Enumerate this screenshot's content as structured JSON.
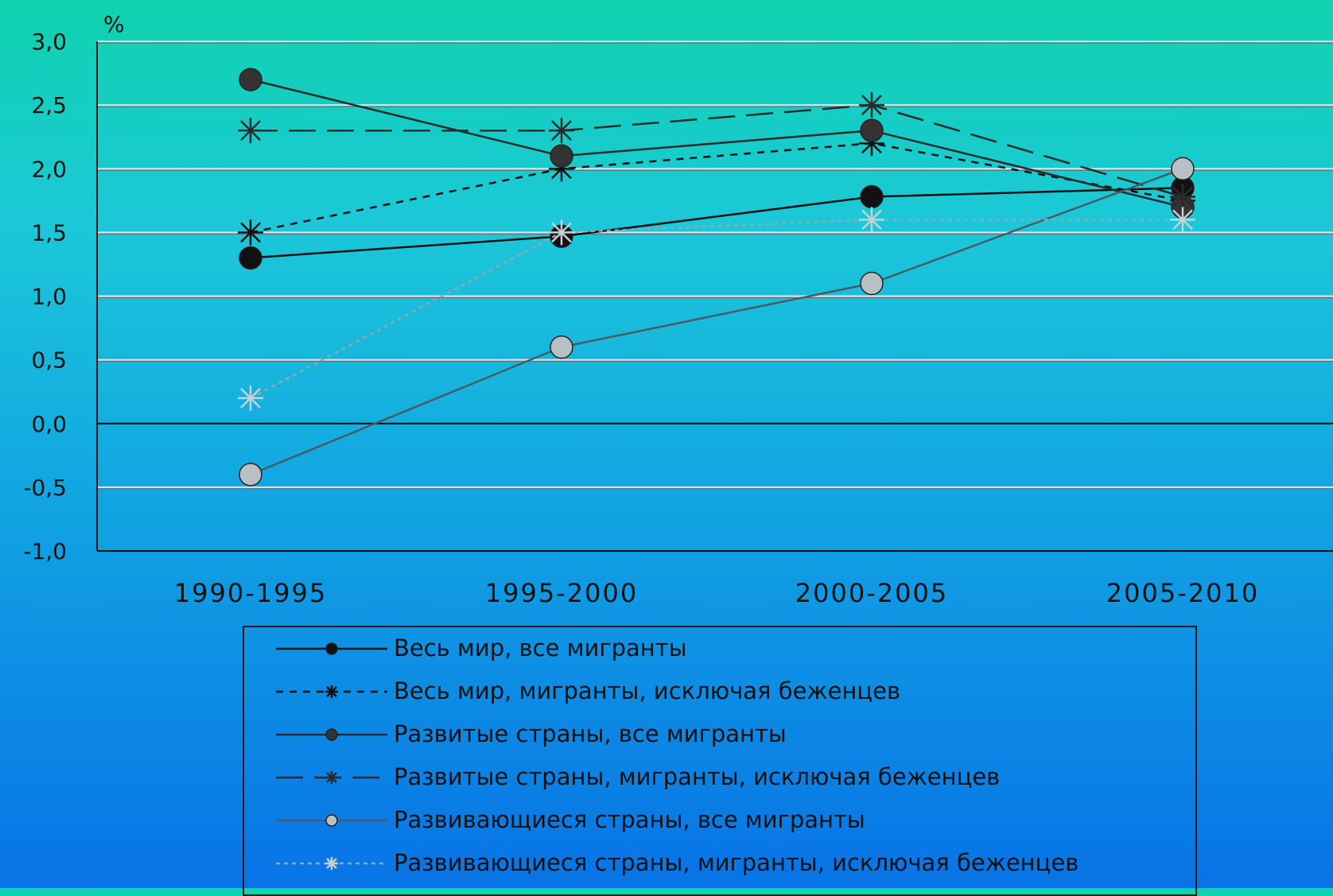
{
  "chart_data": {
    "type": "line",
    "ylabel": "%",
    "categories": [
      "1990-1995",
      "1995-2000",
      "2000-2005",
      "2005-2010"
    ],
    "ylim": [
      -1.0,
      3.0
    ],
    "yticks": [
      "3,0",
      "2,5",
      "2,0",
      "1,5",
      "1,0",
      "0,5",
      "0,0",
      "-0,5",
      "-1,0"
    ],
    "grid": true,
    "legend_position": "bottom",
    "series": [
      {
        "name": "Весь мир, все мигранты",
        "values": [
          1.3,
          1.47,
          1.78,
          1.85
        ],
        "color": "#111111",
        "dash": "solid",
        "marker": "dot",
        "marker_fill": "#111111"
      },
      {
        "name": "Весь мир, мигранты, исключая беженцев",
        "values": [
          1.5,
          2.0,
          2.2,
          1.75
        ],
        "color": "#111111",
        "dash": "short",
        "marker": "star",
        "marker_fill": "#111111"
      },
      {
        "name": "Развитые страны, все мигранты",
        "values": [
          2.7,
          2.1,
          2.3,
          1.7
        ],
        "color": "#2a2a2a",
        "dash": "solid",
        "marker": "dot",
        "marker_fill": "#333333"
      },
      {
        "name": "Развитые страны, мигранты, исключая беженцев",
        "values": [
          2.3,
          2.3,
          2.5,
          1.78
        ],
        "color": "#2a2a2a",
        "dash": "long",
        "marker": "star",
        "marker_fill": "#2a2a2a"
      },
      {
        "name": "Развивающиеся страны, все мигранты",
        "values": [
          -0.4,
          0.6,
          1.1,
          2.0
        ],
        "color": "#4a5a66",
        "dash": "solid",
        "marker": "dot",
        "marker_fill": "#b8c0c6"
      },
      {
        "name": "Развивающиеся страны, мигранты, исключая беженцев",
        "values": [
          0.2,
          1.5,
          1.6,
          1.6
        ],
        "color": "#9aa4aa",
        "dash": "dotted",
        "marker": "star",
        "marker_fill": "#c8d0d4"
      }
    ]
  }
}
